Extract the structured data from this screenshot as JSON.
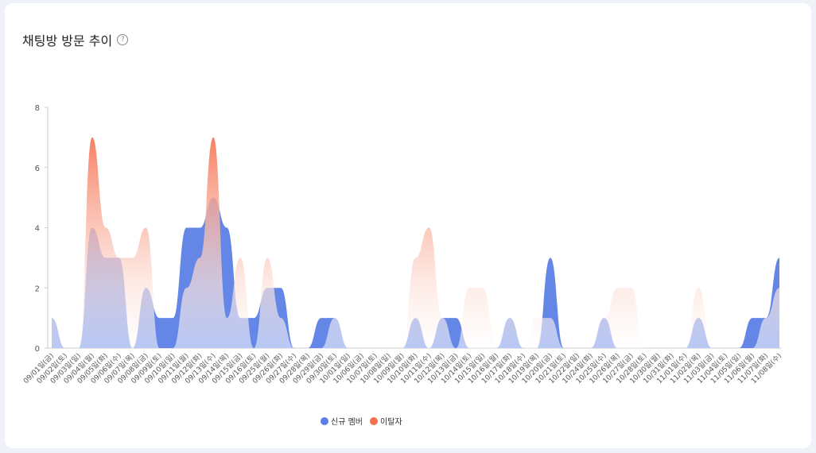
{
  "chart_data": {
    "type": "area",
    "title": "채팅방 방문 추이",
    "categories": [
      "09/01일(금)",
      "09/02일(토)",
      "09/03일(일)",
      "09/04일(월)",
      "09/05일(화)",
      "09/06일(수)",
      "09/07일(목)",
      "09/08일(금)",
      "09/09일(토)",
      "09/10일(일)",
      "09/11일(월)",
      "09/12일(화)",
      "09/13일(수)",
      "09/14일(목)",
      "09/15일(금)",
      "09/16일(토)",
      "09/25일(월)",
      "09/26일(화)",
      "09/27일(수)",
      "09/28일(목)",
      "09/29일(금)",
      "09/30일(토)",
      "10/01일(일)",
      "10/06일(금)",
      "10/07일(토)",
      "10/08일(일)",
      "10/09일(월)",
      "10/10일(화)",
      "10/11일(수)",
      "10/12일(목)",
      "10/13일(금)",
      "10/14일(토)",
      "10/15일(일)",
      "10/16일(월)",
      "10/17일(화)",
      "10/18일(수)",
      "10/19일(목)",
      "10/20일(금)",
      "10/21일(토)",
      "10/22일(일)",
      "10/24일(화)",
      "10/25일(수)",
      "10/26일(목)",
      "10/27일(금)",
      "10/28일(토)",
      "10/30일(월)",
      "10/31일(화)",
      "11/01일(수)",
      "11/02일(목)",
      "11/03일(금)",
      "11/04일(토)",
      "11/05일(일)",
      "11/06일(월)",
      "11/07일(화)",
      "11/08일(수)"
    ],
    "series": [
      {
        "name": "신규 멤버",
        "color": "#5b7fe6",
        "values": [
          1,
          0,
          0,
          4,
          3,
          3,
          0,
          2,
          1,
          1,
          4,
          4,
          5,
          4,
          1,
          1,
          2,
          2,
          0,
          0,
          1,
          1,
          0,
          0,
          0,
          0,
          0,
          1,
          0,
          1,
          1,
          0,
          0,
          0,
          1,
          0,
          0,
          3,
          0,
          0,
          0,
          1,
          0,
          0,
          0,
          0,
          0,
          0,
          1,
          0,
          0,
          0,
          1,
          1,
          3
        ]
      },
      {
        "name": "이탈자",
        "color": "#f5704f",
        "values": [
          1,
          0,
          0,
          7,
          4,
          3,
          3,
          4,
          0,
          0,
          2,
          3,
          7,
          1,
          3,
          0,
          3,
          1,
          0,
          0,
          0,
          1,
          0,
          0,
          0,
          0,
          0,
          3,
          4,
          1,
          0,
          2,
          2,
          0,
          1,
          0,
          1,
          1,
          0,
          0,
          0,
          1,
          2,
          2,
          0,
          0,
          0,
          0,
          2,
          0,
          0,
          0,
          0,
          1,
          2
        ]
      }
    ],
    "ylim": [
      0,
      8
    ],
    "yticks": [
      0,
      2,
      4,
      6,
      8
    ],
    "legend": "bottom"
  }
}
